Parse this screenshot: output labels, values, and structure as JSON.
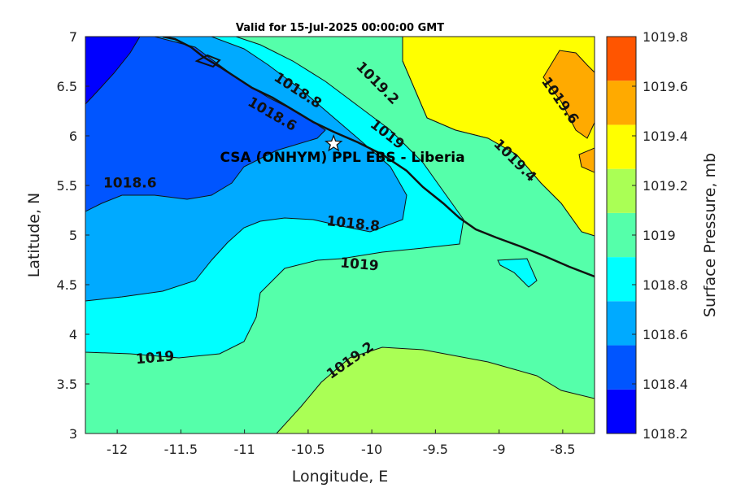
{
  "title": "Valid for 15-Jul-2025 00:00:00 GMT",
  "xlabel": "Longitude, E",
  "ylabel": "Latitude, N",
  "colorbar_label": "Surface Pressure, mb",
  "x_ticks": [
    "-12",
    "-11.5",
    "-11",
    "-10.5",
    "-10",
    "-9.5",
    "-9",
    "-8.5"
  ],
  "y_ticks": [
    "7",
    "6.5",
    "6",
    "5.5",
    "5",
    "4.5",
    "4",
    "3.5",
    "3"
  ],
  "site": {
    "label": "CSA (ONHYM) PPL EBS - Liberia",
    "lon": -10.3,
    "lat": 5.92,
    "marker": "star-icon"
  },
  "colorbar": {
    "levels": [
      "1018.2",
      "1018.4",
      "1018.6",
      "1018.8",
      "1019",
      "1019.2",
      "1019.4",
      "1019.6",
      "1019.8"
    ],
    "colors": [
      "#0000ff",
      "#0055ff",
      "#00aaff",
      "#00ffff",
      "#55ffaa",
      "#aaff55",
      "#ffff00",
      "#ffaa00",
      "#ff5500"
    ]
  },
  "contour_labels": [
    {
      "text": "1018.6",
      "lon": -11.9,
      "lat": 5.48,
      "rot": 0
    },
    {
      "text": "1018.6",
      "lon": -10.8,
      "lat": 6.18,
      "rot": 30
    },
    {
      "text": "1018.8",
      "lon": -10.6,
      "lat": 6.42,
      "rot": 33
    },
    {
      "text": "1018.8",
      "lon": -10.15,
      "lat": 5.07,
      "rot": 6
    },
    {
      "text": "1019.2",
      "lon": -9.98,
      "lat": 6.5,
      "rot": 45
    },
    {
      "text": "1019",
      "lon": -9.9,
      "lat": 5.98,
      "rot": 38
    },
    {
      "text": "1019",
      "lon": -10.1,
      "lat": 4.66,
      "rot": 5
    },
    {
      "text": "1019",
      "lon": -11.7,
      "lat": 3.72,
      "rot": -5
    },
    {
      "text": "1019.2",
      "lon": -10.15,
      "lat": 3.7,
      "rot": -35
    },
    {
      "text": "1019.4",
      "lon": -8.9,
      "lat": 5.72,
      "rot": 45
    },
    {
      "text": "1019.6",
      "lon": -8.55,
      "lat": 6.33,
      "rot": 55
    }
  ]
}
